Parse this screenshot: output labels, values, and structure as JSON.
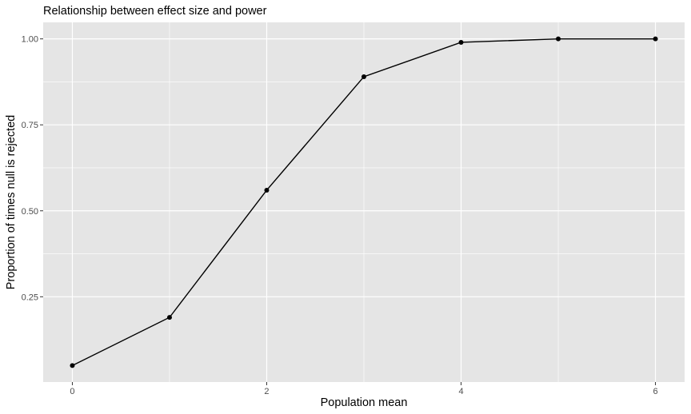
{
  "chart_data": {
    "type": "line",
    "title": "Relationship between effect size and power",
    "xlabel": "Population mean",
    "ylabel": "Proportion of times null is rejected",
    "x": [
      0,
      1,
      2,
      3,
      4,
      5,
      6
    ],
    "series": [
      {
        "values": [
          0.05,
          0.19,
          0.56,
          0.89,
          0.99,
          1.0,
          1.0
        ]
      }
    ],
    "xlim": [
      -0.3,
      6.3
    ],
    "ylim": [
      0.002,
      1.048
    ],
    "x_ticks": [
      0,
      2,
      4,
      6
    ],
    "x_tick_labels": [
      "0",
      "2",
      "4",
      "6"
    ],
    "y_ticks": [
      0.25,
      0.5,
      0.75,
      1.0
    ],
    "y_tick_labels": [
      "0.25",
      "0.50",
      "0.75",
      "1.00"
    ],
    "x_minor": [
      1,
      3,
      5
    ],
    "y_minor": [
      0.375,
      0.625,
      0.875
    ],
    "grid": true,
    "colors": {
      "panel": "#e5e5e5",
      "grid": "#ffffff",
      "line": "#000000",
      "tick": "#4d4d4d"
    }
  }
}
